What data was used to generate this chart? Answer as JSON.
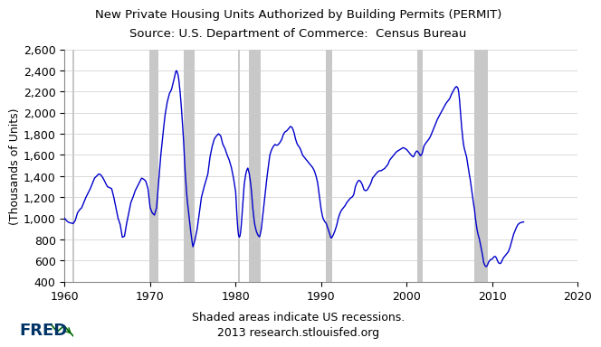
{
  "title_line1": "New Private Housing Units Authorized by Building Permits (PERMIT)",
  "title_line2": "Source: U.S. Department of Commerce:  Census Bureau",
  "ylabel": "(Thousands of Units)",
  "footer_line1": "Shaded areas indicate US recessions.",
  "footer_line2": "2013 research.stlouisfed.org",
  "line_color": "#0000CC",
  "recession_color": "#C8C8C8",
  "background_color": "#FFFFFF",
  "ylim": [
    400,
    2600
  ],
  "xlim": [
    1960,
    2020
  ],
  "yticks": [
    400,
    600,
    800,
    1000,
    1200,
    1400,
    1600,
    1800,
    2000,
    2200,
    2400,
    2600
  ],
  "xticks": [
    1960,
    1970,
    1980,
    1990,
    2000,
    2010,
    2020
  ],
  "recession_bands": [
    [
      1960.917,
      1961.167
    ],
    [
      1969.917,
      1970.917
    ],
    [
      1973.917,
      1975.25
    ],
    [
      1980.25,
      1980.5
    ],
    [
      1981.583,
      1982.917
    ],
    [
      1990.583,
      1991.25
    ],
    [
      2001.25,
      2001.917
    ],
    [
      2007.917,
      2009.5
    ]
  ],
  "title_fontsize": 9.5,
  "label_fontsize": 9,
  "tick_fontsize": 9,
  "footer_fontsize": 9,
  "keypoints": [
    [
      1960.0,
      1000
    ],
    [
      1960.25,
      975
    ],
    [
      1960.5,
      960
    ],
    [
      1960.75,
      955
    ],
    [
      1961.0,
      950
    ],
    [
      1961.25,
      980
    ],
    [
      1961.5,
      1050
    ],
    [
      1961.75,
      1080
    ],
    [
      1962.0,
      1100
    ],
    [
      1962.5,
      1200
    ],
    [
      1963.0,
      1280
    ],
    [
      1963.5,
      1380
    ],
    [
      1964.0,
      1420
    ],
    [
      1964.25,
      1410
    ],
    [
      1964.5,
      1380
    ],
    [
      1964.75,
      1340
    ],
    [
      1965.0,
      1300
    ],
    [
      1965.25,
      1290
    ],
    [
      1965.5,
      1280
    ],
    [
      1965.75,
      1200
    ],
    [
      1966.0,
      1100
    ],
    [
      1966.25,
      1000
    ],
    [
      1966.5,
      940
    ],
    [
      1966.75,
      820
    ],
    [
      1967.0,
      830
    ],
    [
      1967.25,
      950
    ],
    [
      1967.5,
      1050
    ],
    [
      1967.75,
      1150
    ],
    [
      1968.0,
      1200
    ],
    [
      1968.25,
      1260
    ],
    [
      1968.5,
      1300
    ],
    [
      1968.75,
      1340
    ],
    [
      1969.0,
      1380
    ],
    [
      1969.25,
      1370
    ],
    [
      1969.5,
      1350
    ],
    [
      1969.75,
      1280
    ],
    [
      1970.0,
      1100
    ],
    [
      1970.25,
      1050
    ],
    [
      1970.5,
      1030
    ],
    [
      1970.75,
      1100
    ],
    [
      1971.0,
      1350
    ],
    [
      1971.25,
      1600
    ],
    [
      1971.5,
      1800
    ],
    [
      1971.75,
      1980
    ],
    [
      1972.0,
      2100
    ],
    [
      1972.25,
      2180
    ],
    [
      1972.5,
      2220
    ],
    [
      1972.75,
      2300
    ],
    [
      1973.0,
      2390
    ],
    [
      1973.1,
      2400
    ],
    [
      1973.3,
      2350
    ],
    [
      1973.5,
      2200
    ],
    [
      1973.7,
      2000
    ],
    [
      1973.9,
      1750
    ],
    [
      1974.1,
      1430
    ],
    [
      1974.3,
      1200
    ],
    [
      1974.5,
      1050
    ],
    [
      1974.7,
      900
    ],
    [
      1974.9,
      780
    ],
    [
      1975.0,
      730
    ],
    [
      1975.2,
      780
    ],
    [
      1975.5,
      900
    ],
    [
      1975.75,
      1050
    ],
    [
      1976.0,
      1200
    ],
    [
      1976.25,
      1280
    ],
    [
      1976.5,
      1350
    ],
    [
      1976.75,
      1420
    ],
    [
      1977.0,
      1580
    ],
    [
      1977.25,
      1680
    ],
    [
      1977.5,
      1750
    ],
    [
      1977.75,
      1780
    ],
    [
      1978.0,
      1800
    ],
    [
      1978.25,
      1780
    ],
    [
      1978.5,
      1700
    ],
    [
      1978.75,
      1660
    ],
    [
      1979.0,
      1600
    ],
    [
      1979.25,
      1550
    ],
    [
      1979.5,
      1480
    ],
    [
      1979.75,
      1380
    ],
    [
      1980.0,
      1250
    ],
    [
      1980.1,
      1100
    ],
    [
      1980.2,
      950
    ],
    [
      1980.3,
      850
    ],
    [
      1980.4,
      820
    ],
    [
      1980.5,
      830
    ],
    [
      1980.6,
      880
    ],
    [
      1980.7,
      980
    ],
    [
      1980.8,
      1100
    ],
    [
      1980.9,
      1200
    ],
    [
      1981.0,
      1320
    ],
    [
      1981.2,
      1430
    ],
    [
      1981.4,
      1480
    ],
    [
      1981.6,
      1420
    ],
    [
      1981.8,
      1300
    ],
    [
      1982.0,
      1100
    ],
    [
      1982.2,
      950
    ],
    [
      1982.4,
      880
    ],
    [
      1982.6,
      840
    ],
    [
      1982.8,
      820
    ],
    [
      1983.0,
      900
    ],
    [
      1983.2,
      1050
    ],
    [
      1983.4,
      1200
    ],
    [
      1983.6,
      1350
    ],
    [
      1983.8,
      1480
    ],
    [
      1984.0,
      1600
    ],
    [
      1984.2,
      1650
    ],
    [
      1984.4,
      1680
    ],
    [
      1984.6,
      1700
    ],
    [
      1984.8,
      1690
    ],
    [
      1985.0,
      1700
    ],
    [
      1985.2,
      1720
    ],
    [
      1985.4,
      1750
    ],
    [
      1985.6,
      1800
    ],
    [
      1985.8,
      1820
    ],
    [
      1986.0,
      1830
    ],
    [
      1986.2,
      1850
    ],
    [
      1986.4,
      1870
    ],
    [
      1986.6,
      1860
    ],
    [
      1986.8,
      1820
    ],
    [
      1987.0,
      1750
    ],
    [
      1987.2,
      1700
    ],
    [
      1987.4,
      1680
    ],
    [
      1987.6,
      1650
    ],
    [
      1987.8,
      1600
    ],
    [
      1988.0,
      1580
    ],
    [
      1988.2,
      1560
    ],
    [
      1988.4,
      1540
    ],
    [
      1988.6,
      1520
    ],
    [
      1988.8,
      1500
    ],
    [
      1989.0,
      1480
    ],
    [
      1989.2,
      1450
    ],
    [
      1989.4,
      1400
    ],
    [
      1989.6,
      1330
    ],
    [
      1989.8,
      1200
    ],
    [
      1990.0,
      1080
    ],
    [
      1990.2,
      1000
    ],
    [
      1990.4,
      970
    ],
    [
      1990.6,
      950
    ],
    [
      1990.8,
      900
    ],
    [
      1991.0,
      850
    ],
    [
      1991.1,
      820
    ],
    [
      1991.2,
      810
    ],
    [
      1991.4,
      840
    ],
    [
      1991.6,
      880
    ],
    [
      1991.8,
      930
    ],
    [
      1992.0,
      1000
    ],
    [
      1992.2,
      1050
    ],
    [
      1992.4,
      1080
    ],
    [
      1992.6,
      1100
    ],
    [
      1992.8,
      1120
    ],
    [
      1993.0,
      1150
    ],
    [
      1993.2,
      1170
    ],
    [
      1993.4,
      1190
    ],
    [
      1993.6,
      1200
    ],
    [
      1993.8,
      1220
    ],
    [
      1994.0,
      1300
    ],
    [
      1994.2,
      1340
    ],
    [
      1994.4,
      1360
    ],
    [
      1994.6,
      1350
    ],
    [
      1994.8,
      1320
    ],
    [
      1995.0,
      1270
    ],
    [
      1995.2,
      1260
    ],
    [
      1995.4,
      1270
    ],
    [
      1995.6,
      1300
    ],
    [
      1995.8,
      1330
    ],
    [
      1996.0,
      1380
    ],
    [
      1996.2,
      1400
    ],
    [
      1996.4,
      1420
    ],
    [
      1996.6,
      1440
    ],
    [
      1996.8,
      1450
    ],
    [
      1997.0,
      1450
    ],
    [
      1997.2,
      1460
    ],
    [
      1997.4,
      1470
    ],
    [
      1997.6,
      1490
    ],
    [
      1997.8,
      1510
    ],
    [
      1998.0,
      1550
    ],
    [
      1998.2,
      1570
    ],
    [
      1998.4,
      1590
    ],
    [
      1998.6,
      1610
    ],
    [
      1998.8,
      1630
    ],
    [
      1999.0,
      1640
    ],
    [
      1999.2,
      1650
    ],
    [
      1999.4,
      1660
    ],
    [
      1999.6,
      1670
    ],
    [
      1999.8,
      1660
    ],
    [
      2000.0,
      1650
    ],
    [
      2000.2,
      1630
    ],
    [
      2000.4,
      1610
    ],
    [
      2000.6,
      1590
    ],
    [
      2000.8,
      1580
    ],
    [
      2001.0,
      1620
    ],
    [
      2001.2,
      1640
    ],
    [
      2001.4,
      1620
    ],
    [
      2001.6,
      1590
    ],
    [
      2001.8,
      1610
    ],
    [
      2002.0,
      1680
    ],
    [
      2002.2,
      1710
    ],
    [
      2002.4,
      1730
    ],
    [
      2002.6,
      1750
    ],
    [
      2002.8,
      1780
    ],
    [
      2003.0,
      1820
    ],
    [
      2003.2,
      1860
    ],
    [
      2003.4,
      1900
    ],
    [
      2003.6,
      1940
    ],
    [
      2003.8,
      1970
    ],
    [
      2004.0,
      2000
    ],
    [
      2004.2,
      2030
    ],
    [
      2004.4,
      2060
    ],
    [
      2004.6,
      2090
    ],
    [
      2004.8,
      2110
    ],
    [
      2005.0,
      2130
    ],
    [
      2005.2,
      2170
    ],
    [
      2005.4,
      2200
    ],
    [
      2005.6,
      2230
    ],
    [
      2005.8,
      2250
    ],
    [
      2006.0,
      2230
    ],
    [
      2006.1,
      2180
    ],
    [
      2006.2,
      2100
    ],
    [
      2006.3,
      1980
    ],
    [
      2006.4,
      1880
    ],
    [
      2006.5,
      1800
    ],
    [
      2006.6,
      1720
    ],
    [
      2006.7,
      1670
    ],
    [
      2006.8,
      1640
    ],
    [
      2006.9,
      1610
    ],
    [
      2007.0,
      1580
    ],
    [
      2007.1,
      1530
    ],
    [
      2007.2,
      1480
    ],
    [
      2007.3,
      1420
    ],
    [
      2007.4,
      1380
    ],
    [
      2007.5,
      1320
    ],
    [
      2007.6,
      1260
    ],
    [
      2007.7,
      1200
    ],
    [
      2007.8,
      1140
    ],
    [
      2007.9,
      1100
    ],
    [
      2008.0,
      1020
    ],
    [
      2008.1,
      960
    ],
    [
      2008.2,
      900
    ],
    [
      2008.3,
      860
    ],
    [
      2008.4,
      830
    ],
    [
      2008.5,
      800
    ],
    [
      2008.6,
      760
    ],
    [
      2008.7,
      720
    ],
    [
      2008.8,
      680
    ],
    [
      2008.9,
      630
    ],
    [
      2009.0,
      580
    ],
    [
      2009.1,
      560
    ],
    [
      2009.2,
      545
    ],
    [
      2009.3,
      540
    ],
    [
      2009.4,
      550
    ],
    [
      2009.5,
      570
    ],
    [
      2009.6,
      590
    ],
    [
      2009.7,
      600
    ],
    [
      2009.8,
      610
    ],
    [
      2009.9,
      610
    ],
    [
      2010.0,
      615
    ],
    [
      2010.1,
      625
    ],
    [
      2010.2,
      635
    ],
    [
      2010.3,
      640
    ],
    [
      2010.4,
      635
    ],
    [
      2010.5,
      620
    ],
    [
      2010.6,
      600
    ],
    [
      2010.7,
      580
    ],
    [
      2010.8,
      575
    ],
    [
      2010.9,
      570
    ],
    [
      2011.0,
      575
    ],
    [
      2011.1,
      590
    ],
    [
      2011.2,
      610
    ],
    [
      2011.3,
      625
    ],
    [
      2011.4,
      635
    ],
    [
      2011.5,
      645
    ],
    [
      2011.6,
      655
    ],
    [
      2011.7,
      665
    ],
    [
      2011.8,
      675
    ],
    [
      2011.9,
      685
    ],
    [
      2012.0,
      710
    ],
    [
      2012.1,
      730
    ],
    [
      2012.2,
      760
    ],
    [
      2012.3,
      790
    ],
    [
      2012.4,
      820
    ],
    [
      2012.5,
      850
    ],
    [
      2012.6,
      870
    ],
    [
      2012.7,
      890
    ],
    [
      2012.8,
      910
    ],
    [
      2012.9,
      925
    ],
    [
      2013.0,
      940
    ],
    [
      2013.2,
      955
    ],
    [
      2013.4,
      960
    ],
    [
      2013.6,
      965
    ]
  ]
}
